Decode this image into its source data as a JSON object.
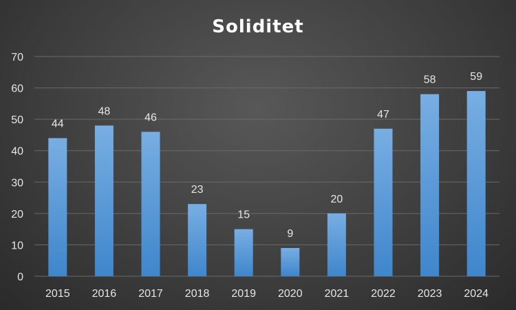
{
  "chart_data": {
    "type": "bar",
    "title": "Soliditet",
    "xlabel": "",
    "ylabel": "",
    "categories": [
      "2015",
      "2016",
      "2017",
      "2018",
      "2019",
      "2020",
      "2021",
      "2022",
      "2023",
      "2024"
    ],
    "values": [
      44,
      48,
      46,
      23,
      15,
      9,
      20,
      47,
      58,
      59
    ],
    "ylim": [
      0,
      70
    ],
    "yticks": [
      0,
      10,
      20,
      30,
      40,
      50,
      60,
      70
    ],
    "grid": true,
    "legend": "none",
    "bar_color": "#5b9bd5",
    "background_color": "#404040"
  }
}
